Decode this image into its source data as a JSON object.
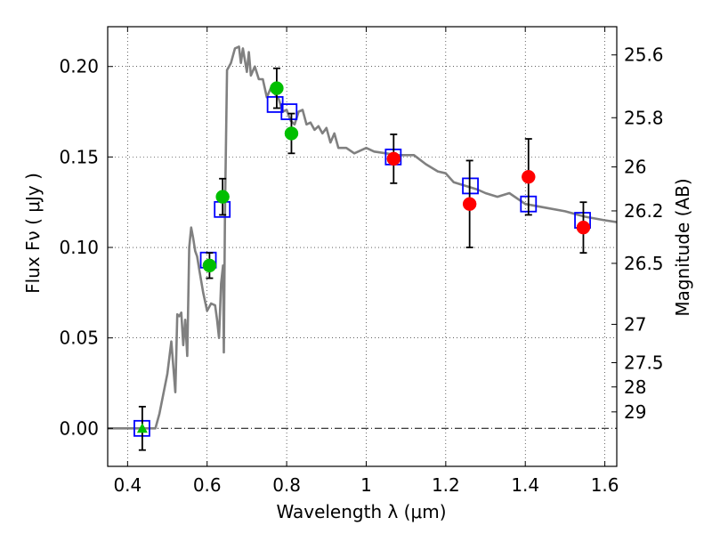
{
  "chart_data": {
    "type": "scatter",
    "xlabel": "Wavelength  λ (μm)",
    "ylabel": "Flux  Fν  ( μJy )",
    "ylabel_right": "Magnitude (AB)",
    "xlim": [
      0.35,
      1.63
    ],
    "ylim": [
      -0.021,
      0.222
    ],
    "grid": true,
    "x_ticks": [
      "0.4",
      "0.6",
      "0.8",
      "1",
      "1.2",
      "1.4",
      "1.6"
    ],
    "x_tick_values": [
      0.4,
      0.6,
      0.8,
      1.0,
      1.2,
      1.4,
      1.6
    ],
    "y_ticks": [
      "0.00",
      "0.05",
      "0.10",
      "0.15",
      "0.20"
    ],
    "y_tick_values": [
      0.0,
      0.05,
      0.1,
      0.15,
      0.2
    ],
    "magnitude_ticks": [
      {
        "label": "25.6",
        "flux": 0.2064
      },
      {
        "label": "25.8",
        "flux": 0.1717
      },
      {
        "label": "26",
        "flux": 0.1445
      },
      {
        "label": "26.2",
        "flux": 0.1202
      },
      {
        "label": "26.5",
        "flux": 0.0912
      },
      {
        "label": "27",
        "flux": 0.0575
      },
      {
        "label": "27.5",
        "flux": 0.0363
      },
      {
        "label": "28",
        "flux": 0.0229
      },
      {
        "label": "29",
        "flux": 0.0091
      }
    ],
    "series": [
      {
        "marker": "line",
        "color": "#808080",
        "x": [
          0.35,
          0.47,
          0.48,
          0.5,
          0.51,
          0.52,
          0.525,
          0.53,
          0.535,
          0.54,
          0.545,
          0.55,
          0.555,
          0.56,
          0.565,
          0.57,
          0.575,
          0.58,
          0.59,
          0.6,
          0.61,
          0.62,
          0.625,
          0.63,
          0.635,
          0.64,
          0.642,
          0.645,
          0.65,
          0.66,
          0.67,
          0.68,
          0.685,
          0.69,
          0.7,
          0.705,
          0.71,
          0.72,
          0.73,
          0.74,
          0.75,
          0.76,
          0.77,
          0.78,
          0.79,
          0.8,
          0.81,
          0.82,
          0.83,
          0.84,
          0.85,
          0.86,
          0.87,
          0.88,
          0.89,
          0.9,
          0.91,
          0.92,
          0.93,
          0.95,
          0.97,
          1.0,
          1.02,
          1.05,
          1.08,
          1.1,
          1.12,
          1.15,
          1.18,
          1.2,
          1.22,
          1.25,
          1.28,
          1.3,
          1.33,
          1.36,
          1.4,
          1.45,
          1.5,
          1.55,
          1.6,
          1.63
        ],
        "y": [
          0.0,
          0.0,
          0.008,
          0.03,
          0.048,
          0.02,
          0.063,
          0.062,
          0.064,
          0.046,
          0.06,
          0.04,
          0.1,
          0.111,
          0.105,
          0.098,
          0.095,
          0.088,
          0.075,
          0.065,
          0.069,
          0.068,
          0.06,
          0.05,
          0.08,
          0.09,
          0.042,
          0.12,
          0.198,
          0.202,
          0.21,
          0.211,
          0.202,
          0.21,
          0.197,
          0.208,
          0.195,
          0.2,
          0.193,
          0.193,
          0.183,
          0.188,
          0.185,
          0.182,
          0.175,
          0.176,
          0.17,
          0.168,
          0.175,
          0.176,
          0.168,
          0.169,
          0.165,
          0.167,
          0.163,
          0.166,
          0.158,
          0.163,
          0.155,
          0.155,
          0.152,
          0.155,
          0.153,
          0.152,
          0.151,
          0.151,
          0.151,
          0.146,
          0.142,
          0.141,
          0.136,
          0.134,
          0.132,
          0.13,
          0.128,
          0.13,
          0.124,
          0.122,
          0.12,
          0.117,
          0.115,
          0.114
        ]
      },
      {
        "marker": "open-square",
        "color": "#0000ff",
        "x": [
          0.436,
          0.603,
          0.638,
          0.771,
          0.806,
          1.068,
          1.262,
          1.408,
          1.544
        ],
        "y": [
          0.0,
          0.093,
          0.121,
          0.179,
          0.175,
          0.15,
          0.134,
          0.124,
          0.115
        ]
      },
      {
        "marker": "filled-circle",
        "color": "#00bf00",
        "x": [
          0.606,
          0.639,
          0.775,
          0.812
        ],
        "y": [
          0.09,
          0.128,
          0.188,
          0.163
        ],
        "err": [
          0.007,
          0.01,
          0.011,
          0.011
        ]
      },
      {
        "marker": "filled-circle",
        "color": "#ff0000",
        "x": [
          1.069,
          1.26,
          1.408,
          1.546
        ],
        "y": [
          0.149,
          0.124,
          0.139,
          0.111
        ],
        "err": [
          0.0135,
          0.024,
          0.021,
          0.014
        ]
      },
      {
        "marker": "filled-triangle",
        "color": "#00bf00",
        "x": [
          0.437
        ],
        "y": [
          0.0
        ],
        "err": [
          0.012
        ]
      }
    ]
  }
}
